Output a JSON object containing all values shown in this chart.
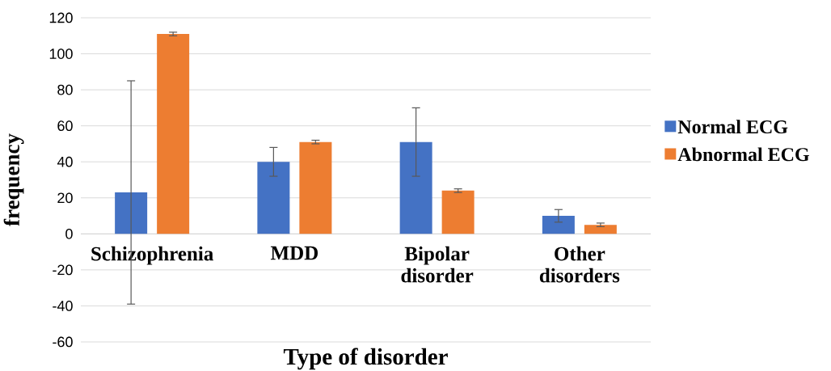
{
  "chart_data": {
    "type": "bar",
    "xlabel": "Type of disorder",
    "ylabel": "frequency",
    "categories": [
      "Schizophrenia",
      "MDD",
      "Bipolar disorder",
      "Other disorders"
    ],
    "series": [
      {
        "name": "Normal ECG",
        "color": "#4472c4",
        "values": [
          23,
          40,
          51,
          10
        ],
        "errors": [
          62,
          8,
          19,
          3.5
        ]
      },
      {
        "name": "Abnormal ECG",
        "color": "#ed7d31",
        "values": [
          111,
          51,
          24,
          5
        ],
        "errors": [
          1,
          1,
          1,
          1
        ]
      }
    ],
    "ylim": [
      -60,
      120
    ],
    "yticks": [
      -60,
      -40,
      -20,
      0,
      20,
      40,
      60,
      80,
      100,
      120
    ],
    "grid": "y",
    "legend": "right"
  }
}
